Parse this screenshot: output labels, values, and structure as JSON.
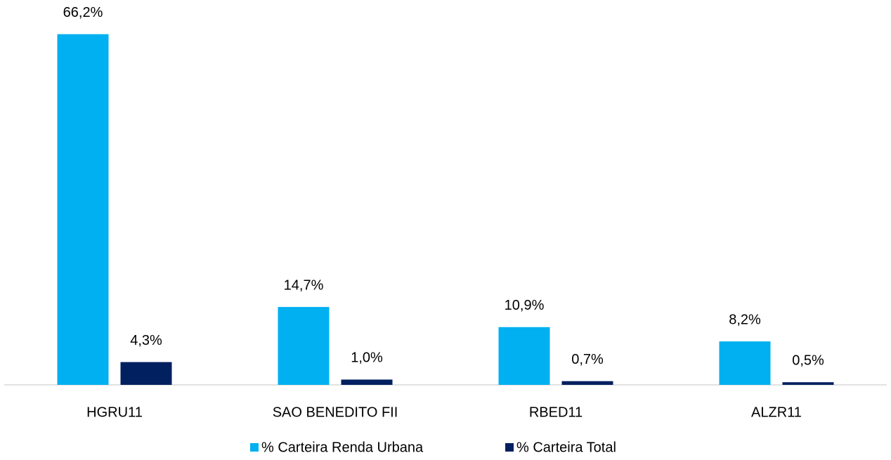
{
  "chart_data": {
    "type": "bar",
    "categories": [
      "HGRU11",
      "SAO BENEDITO FII",
      "RBED11",
      "ALZR11"
    ],
    "series": [
      {
        "name": "% Carteira Renda Urbana",
        "color": "#00b0f0",
        "values": [
          66.2,
          14.7,
          10.9,
          8.2
        ],
        "value_labels": [
          "66,2%",
          "14,7%",
          "10,9%",
          "8,2%"
        ]
      },
      {
        "name": "% Carteira Total",
        "color": "#002060",
        "values": [
          4.3,
          1.0,
          0.7,
          0.5
        ],
        "value_labels": [
          "4,3%",
          "1,0%",
          "0,7%",
          "0,5%"
        ]
      }
    ],
    "ylim": [
      0,
      70
    ],
    "legend": "bottom"
  }
}
